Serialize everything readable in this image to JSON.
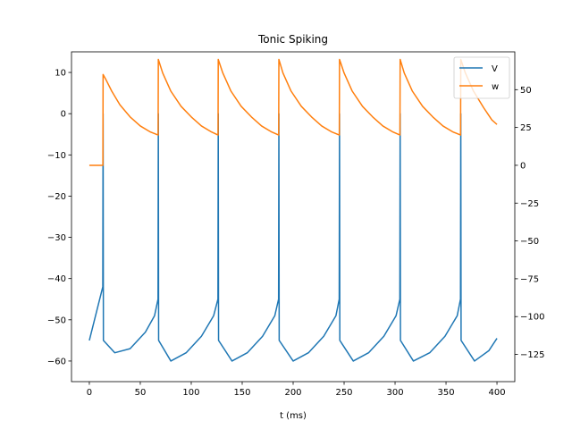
{
  "chart_data": {
    "type": "line",
    "title": "Tonic Spiking",
    "xlabel": "t (ms)",
    "ylabel": "",
    "y2label": "",
    "xlim": [
      -17.5,
      417.5
    ],
    "ylim": [
      -65,
      15
    ],
    "y2lim": [
      -143,
      75
    ],
    "xticks": [
      0,
      50,
      100,
      150,
      200,
      250,
      300,
      350,
      400
    ],
    "yticks": [
      -60,
      -50,
      -40,
      -30,
      -20,
      -10,
      0,
      10
    ],
    "y2ticks": [
      -125,
      -100,
      -75,
      -50,
      -25,
      0,
      25,
      50
    ],
    "grid": false,
    "legend_position": "top-right",
    "spike_times": [
      13.5,
      67.7,
      126.5,
      186.0,
      245.5,
      305.0,
      364.5
    ],
    "series": [
      {
        "name": "V",
        "axis": "left",
        "color": "#1f77b4",
        "points": [
          [
            0,
            -55
          ],
          [
            13.2,
            -42
          ],
          [
            13.5,
            0
          ],
          [
            13.8,
            -55
          ],
          [
            25,
            -58
          ],
          [
            40,
            -57
          ],
          [
            55,
            -53
          ],
          [
            64,
            -49
          ],
          [
            67.4,
            -45
          ],
          [
            67.7,
            0
          ],
          [
            68.0,
            -55
          ],
          [
            80,
            -60
          ],
          [
            95,
            -58
          ],
          [
            110,
            -54
          ],
          [
            122,
            -49
          ],
          [
            126.2,
            -45
          ],
          [
            126.5,
            0
          ],
          [
            126.8,
            -55
          ],
          [
            140,
            -60
          ],
          [
            155,
            -58
          ],
          [
            170,
            -54
          ],
          [
            182,
            -49
          ],
          [
            185.7,
            -45
          ],
          [
            186.0,
            0
          ],
          [
            186.3,
            -55
          ],
          [
            200,
            -60
          ],
          [
            215,
            -58
          ],
          [
            230,
            -54
          ],
          [
            242,
            -49
          ],
          [
            245.2,
            -45
          ],
          [
            245.5,
            0
          ],
          [
            245.8,
            -55
          ],
          [
            259,
            -60
          ],
          [
            274,
            -58
          ],
          [
            289,
            -54
          ],
          [
            301,
            -49
          ],
          [
            304.7,
            -45
          ],
          [
            305.0,
            0
          ],
          [
            305.3,
            -55
          ],
          [
            318,
            -60
          ],
          [
            334,
            -58
          ],
          [
            349,
            -54
          ],
          [
            361,
            -49
          ],
          [
            364.2,
            -45
          ],
          [
            364.5,
            0
          ],
          [
            364.8,
            -55
          ],
          [
            378,
            -60
          ],
          [
            392,
            -57.5
          ],
          [
            400,
            -54.5
          ]
        ]
      },
      {
        "name": "w",
        "axis": "right",
        "color": "#ff7f0e",
        "points": [
          [
            0,
            0
          ],
          [
            13.3,
            0
          ],
          [
            13.5,
            60
          ],
          [
            16,
            57
          ],
          [
            22,
            49
          ],
          [
            30,
            40
          ],
          [
            40,
            32
          ],
          [
            50,
            26
          ],
          [
            60,
            22
          ],
          [
            67.5,
            20
          ],
          [
            67.7,
            70
          ],
          [
            72,
            61
          ],
          [
            80,
            49
          ],
          [
            90,
            39
          ],
          [
            100,
            32
          ],
          [
            110,
            26
          ],
          [
            120,
            22
          ],
          [
            126.3,
            20
          ],
          [
            126.5,
            70
          ],
          [
            131,
            61
          ],
          [
            139,
            49
          ],
          [
            149,
            39
          ],
          [
            159,
            32
          ],
          [
            169,
            26
          ],
          [
            179,
            22
          ],
          [
            185.8,
            20
          ],
          [
            186.0,
            70
          ],
          [
            190,
            61
          ],
          [
            198,
            49
          ],
          [
            208,
            39
          ],
          [
            218,
            32
          ],
          [
            228,
            26
          ],
          [
            238,
            22
          ],
          [
            245.3,
            20
          ],
          [
            245.5,
            70
          ],
          [
            250,
            61
          ],
          [
            258,
            49
          ],
          [
            268,
            39
          ],
          [
            278,
            32
          ],
          [
            288,
            26
          ],
          [
            298,
            22
          ],
          [
            304.8,
            20
          ],
          [
            305.0,
            70
          ],
          [
            309,
            61
          ],
          [
            317,
            49
          ],
          [
            327,
            39
          ],
          [
            337,
            32
          ],
          [
            347,
            26
          ],
          [
            357,
            22
          ],
          [
            364.3,
            20
          ],
          [
            364.5,
            70
          ],
          [
            369,
            61
          ],
          [
            377,
            49
          ],
          [
            387,
            38
          ],
          [
            395,
            30
          ],
          [
            400,
            27
          ]
        ]
      }
    ]
  }
}
